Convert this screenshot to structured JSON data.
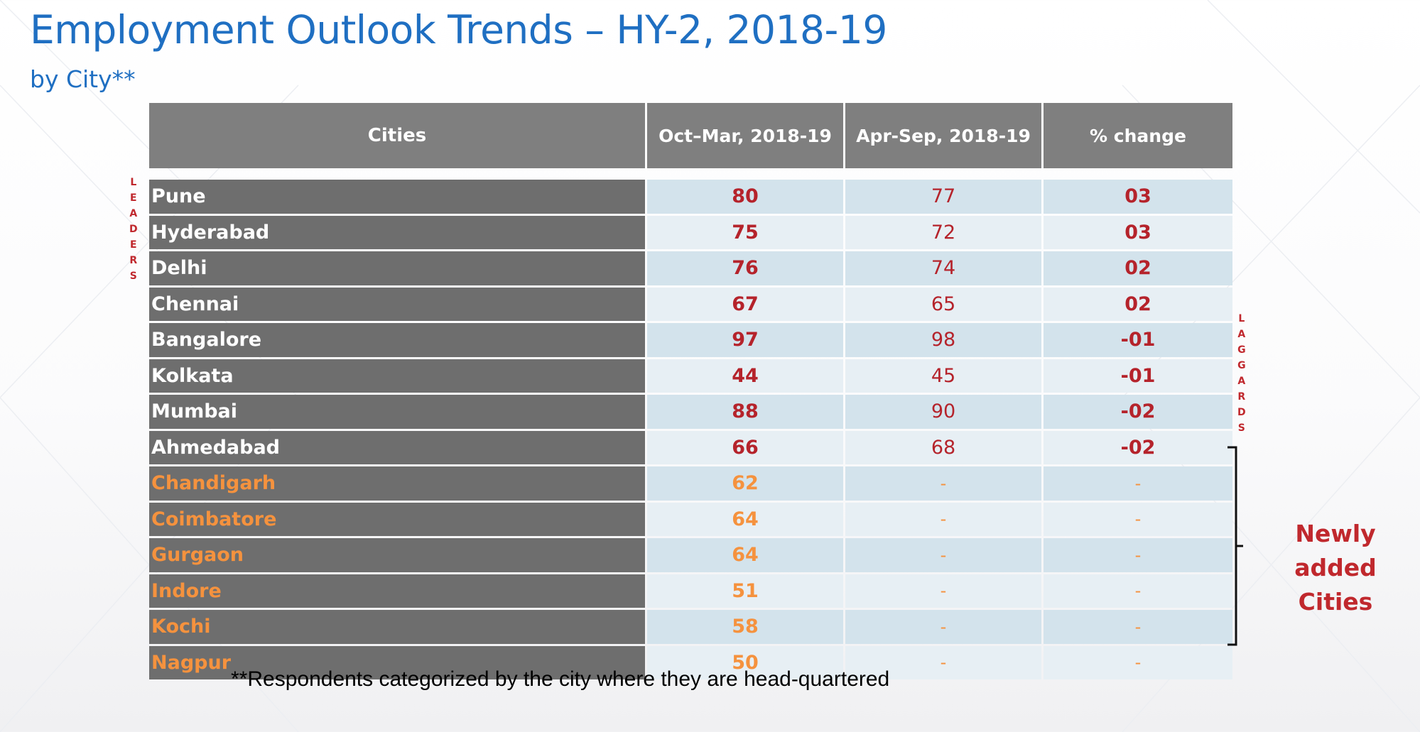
{
  "title": "Employment Outlook Trends – HY-2, 2018-19",
  "subtitle": "by City**",
  "table": {
    "headers": [
      "Cities",
      "Oct–Mar, 2018-19",
      "Apr-Sep, 2018-19",
      "% change"
    ],
    "rows": [
      {
        "city": "Pune",
        "oct_mar": "80",
        "apr_sep": "77",
        "change": "03",
        "group": "leader"
      },
      {
        "city": "Hyderabad",
        "oct_mar": "75",
        "apr_sep": "72",
        "change": "03",
        "group": "leader"
      },
      {
        "city": "Delhi",
        "oct_mar": "76",
        "apr_sep": "74",
        "change": "02",
        "group": "leader"
      },
      {
        "city": "Chennai",
        "oct_mar": "67",
        "apr_sep": "65",
        "change": "02",
        "group": "leader"
      },
      {
        "city": "Bangalore",
        "oct_mar": "97",
        "apr_sep": "98",
        "change": "-01",
        "group": "laggard"
      },
      {
        "city": "Kolkata",
        "oct_mar": "44",
        "apr_sep": "45",
        "change": "-01",
        "group": "laggard"
      },
      {
        "city": "Mumbai",
        "oct_mar": "88",
        "apr_sep": "90",
        "change": "-02",
        "group": "laggard"
      },
      {
        "city": "Ahmedabad",
        "oct_mar": "66",
        "apr_sep": "68",
        "change": "-02",
        "group": "laggard"
      },
      {
        "city": "Chandigarh",
        "oct_mar": "62",
        "apr_sep": "-",
        "change": "-",
        "group": "new"
      },
      {
        "city": "Coimbatore",
        "oct_mar": "64",
        "apr_sep": "-",
        "change": "-",
        "group": "new"
      },
      {
        "city": "Gurgaon",
        "oct_mar": "64",
        "apr_sep": "-",
        "change": "-",
        "group": "new"
      },
      {
        "city": "Indore",
        "oct_mar": "51",
        "apr_sep": "-",
        "change": "-",
        "group": "new"
      },
      {
        "city": "Kochi",
        "oct_mar": "58",
        "apr_sep": "-",
        "change": "-",
        "group": "new"
      },
      {
        "city": "Nagpur",
        "oct_mar": "50",
        "apr_sep": "-",
        "change": "-",
        "group": "new"
      }
    ]
  },
  "side_labels": {
    "leaders": [
      "L",
      "E",
      "A",
      "D",
      "E",
      "R",
      "S"
    ],
    "laggards": [
      "L",
      "A",
      "G",
      "G",
      "A",
      "R",
      "D",
      "S"
    ]
  },
  "newly_added_label": {
    "line1": "Newly added",
    "line2": "Cities"
  },
  "footnote": "**Respondents categorized by the city where they are head-quartered",
  "colors": {
    "title_blue": "#1f6fc2",
    "header_gray": "#7f7f7f",
    "city_gray": "#6e6e6e",
    "value_red": "#b5232b",
    "new_city_orange": "#f5923e",
    "label_red": "#c0282d",
    "cell_blue_dark": "#d3e3ec",
    "cell_blue_light": "#e7eff4"
  }
}
